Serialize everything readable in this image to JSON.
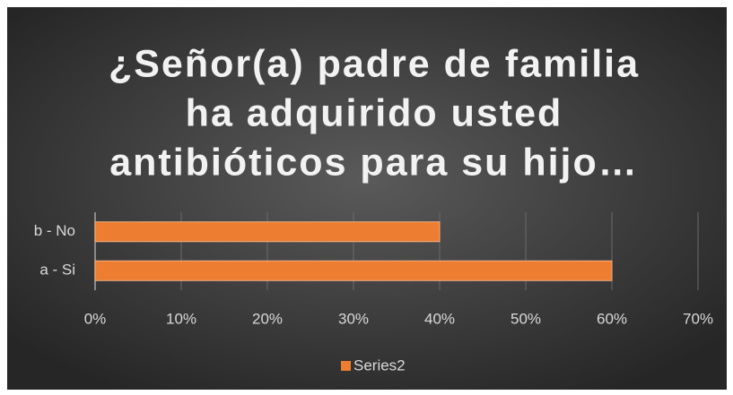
{
  "chart_data": {
    "type": "bar",
    "orientation": "horizontal",
    "title": [
      "¿Señor(a) padre de familia",
      "ha adquirido usted",
      "antibióticos para su hijo…"
    ],
    "categories": [
      "a - Si",
      "b - No"
    ],
    "series": [
      {
        "name": "Series2",
        "color": "#ed7d31",
        "values": [
          60,
          40
        ]
      }
    ],
    "xlim": [
      0,
      70
    ],
    "xticks": [
      {
        "value": 0,
        "label": "0%"
      },
      {
        "value": 10,
        "label": "10%"
      },
      {
        "value": 20,
        "label": "20%"
      },
      {
        "value": 30,
        "label": "30%"
      },
      {
        "value": 40,
        "label": "40%"
      },
      {
        "value": 50,
        "label": "50%"
      },
      {
        "value": 60,
        "label": "60%"
      },
      {
        "value": 70,
        "label": "70%"
      }
    ],
    "grid": true,
    "legend": "bottom"
  }
}
